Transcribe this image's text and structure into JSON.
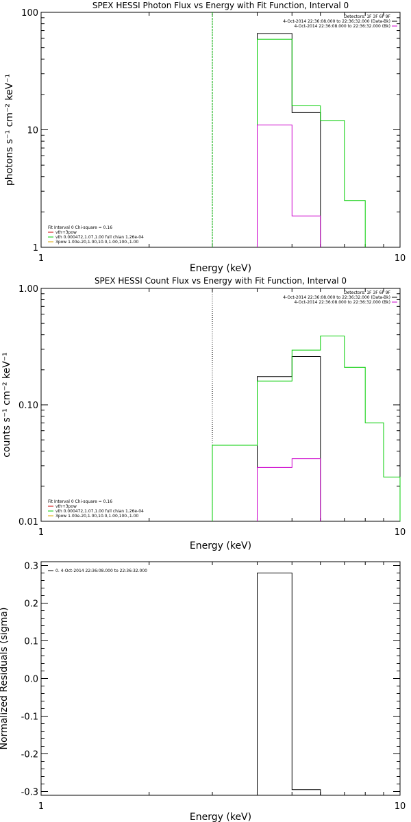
{
  "chart_data": [
    {
      "type": "line",
      "title": "SPEX HESSI Photon Flux vs Energy with Fit Function, Interval 0",
      "xlabel": "Energy (keV)",
      "ylabel": "photons s⁻¹ cm⁻² keV⁻¹",
      "x_scale": "log",
      "y_scale": "log",
      "xlim": [
        1,
        10
      ],
      "ylim": [
        1,
        100
      ],
      "x_ticks": [
        "1",
        "10"
      ],
      "y_ticks": [
        "1",
        "10",
        "100"
      ],
      "grid": false,
      "vline": {
        "x": 3.0,
        "color": "#00aa00",
        "style": "dashed"
      },
      "legend_topright": {
        "position": "top-right",
        "lines": [
          {
            "text": "Detectors: 1F 3F 6F 9F",
            "color": ""
          },
          {
            "text": "4-Oct-2014 22:36:08.000 to 22:36:32.000 (Data-Bk)",
            "color": "#000000"
          },
          {
            "text": "4-Oct-2014 22:36:08.000 to 22:36:32.000 (Bk)",
            "color": "#cc00cc"
          }
        ]
      },
      "legend_bottomleft": {
        "position": "bottom-left",
        "lines": [
          {
            "text": "Fit Interval 0   Chi-square = 0.16",
            "color": ""
          },
          {
            "text": "vth+3pow",
            "color": "#cc0000"
          },
          {
            "text": "vth 0.000472,1.07,1.00   full chian 1.26e-04",
            "color": "#00cc00"
          },
          {
            "text": "3pow 1.00e-20,1.00,10.0,1.00,100.,1.00",
            "color": "#ddaa00"
          }
        ]
      },
      "series": [
        {
          "color": "#000000",
          "edges": [
            4.0,
            5.0,
            6.0
          ],
          "values": [
            66,
            14
          ]
        },
        {
          "color": "#00cc00",
          "edges": [
            4.0,
            5.0,
            6.0,
            7.0,
            8.0
          ],
          "values": [
            59,
            16,
            12,
            2.5
          ]
        },
        {
          "color": "#cc00cc",
          "edges": [
            4.0,
            5.0,
            6.0
          ],
          "values": [
            11,
            1.85
          ]
        }
      ]
    },
    {
      "type": "line",
      "title": "SPEX HESSI Count Flux vs Energy with Fit Function, Interval 0",
      "xlabel": "Energy (keV)",
      "ylabel": "counts s⁻¹ cm⁻² keV⁻¹",
      "x_scale": "log",
      "y_scale": "log",
      "xlim": [
        1,
        10
      ],
      "ylim": [
        0.01,
        1.0
      ],
      "x_ticks": [
        "1",
        "10"
      ],
      "y_ticks": [
        "0.01",
        "0.10",
        "1.00"
      ],
      "grid": false,
      "vline": {
        "x": 3.0,
        "color": "#000000",
        "style": "dotted"
      },
      "legend_topright": {
        "position": "top-right",
        "lines": [
          {
            "text": "Detectors: 1F 3F 6F 9F",
            "color": ""
          },
          {
            "text": "4-Oct-2014 22:36:08.000 to 22:36:32.000 (Data-Bk)",
            "color": "#000000"
          },
          {
            "text": "4-Oct-2014 22:36:08.000 to 22:36:32.000 (Bk)",
            "color": "#cc00cc"
          }
        ]
      },
      "legend_bottomleft": {
        "position": "bottom-left",
        "lines": [
          {
            "text": "Fit Interval 0   Chi-square = 0.16",
            "color": ""
          },
          {
            "text": "vth+3pow",
            "color": "#cc0000"
          },
          {
            "text": "vth 0.000472,1.07,1.00   full chian 1.26e-04",
            "color": "#00cc00"
          },
          {
            "text": "3pow 1.00e-20,1.00,10.0,1.00,100.,1.00",
            "color": "#ddaa00"
          }
        ]
      },
      "series": [
        {
          "color": "#000000",
          "edges": [
            4.0,
            5.0,
            6.0
          ],
          "values": [
            0.175,
            0.26
          ]
        },
        {
          "color": "#00cc00",
          "edges": [
            3.0,
            4.0,
            5.0,
            6.0,
            7.0,
            8.0,
            9.0,
            10.0
          ],
          "values": [
            0.045,
            0.16,
            0.295,
            0.39,
            0.21,
            0.07,
            0.024
          ]
        },
        {
          "color": "#cc00cc",
          "edges": [
            4.0,
            5.0,
            6.0
          ],
          "values": [
            0.029,
            0.0345
          ]
        }
      ]
    },
    {
      "type": "line",
      "title": "",
      "xlabel": "Energy (keV)",
      "ylabel": "Normalized Residuals (sigma)",
      "x_scale": "log",
      "y_scale": "linear",
      "xlim": [
        1,
        10
      ],
      "ylim": [
        -0.31,
        0.31
      ],
      "x_ticks": [
        "1",
        "10"
      ],
      "y_ticks": [
        "-0.3",
        "-0.2",
        "-0.1",
        "0.0",
        "0.1",
        "0.2",
        "0.3"
      ],
      "grid": false,
      "legend_topleft": {
        "position": "top-left",
        "lines": [
          {
            "text": "0.  4-Oct-2014 22:36:08.000 to 22:36:32.000",
            "color": "#000000"
          }
        ]
      },
      "series": [
        {
          "color": "#000000",
          "edges": [
            4.0,
            5.0,
            6.0
          ],
          "values": [
            0.28,
            -0.295
          ]
        }
      ]
    }
  ]
}
